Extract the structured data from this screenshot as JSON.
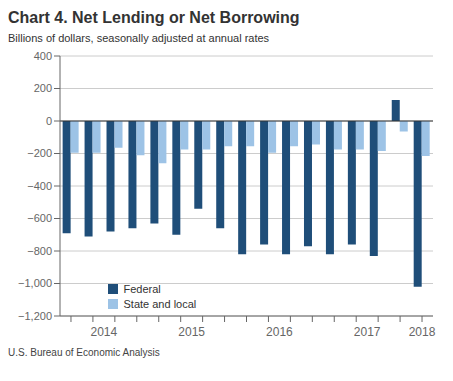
{
  "chart_data": {
    "type": "bar",
    "title": "Chart 4. Net Lending or Net Borrowing",
    "subtitle": "Billions of dollars, seasonally adjusted at annual rates",
    "annotations": [
      "U.S. Bureau of Economic Analysis"
    ],
    "categories": [
      "2014",
      null,
      null,
      null,
      "2015",
      null,
      null,
      null,
      "2016",
      null,
      null,
      null,
      "2017",
      null,
      null,
      null,
      "2018"
    ],
    "series": [
      {
        "name": "Federal",
        "color": "#1F4E79",
        "values": [
          -690,
          -710,
          -680,
          -660,
          -630,
          -700,
          -540,
          -660,
          -820,
          -760,
          -820,
          -770,
          -820,
          -760,
          -830,
          130,
          -1020
        ]
      },
      {
        "name": "State and local",
        "color": "#9DC3E6",
        "values": [
          -195,
          -195,
          -165,
          -210,
          -260,
          -175,
          -175,
          -155,
          -155,
          -195,
          -155,
          -145,
          -175,
          -175,
          -185,
          -65,
          -215
        ]
      }
    ],
    "ylim": [
      -1200,
      400
    ],
    "yticks": [
      400,
      200,
      0,
      {
        "value": -200,
        "label": "−200"
      },
      {
        "value": -400,
        "label": "−400"
      },
      {
        "value": -600,
        "label": "−600"
      },
      {
        "value": -800,
        "label": "−800"
      },
      {
        "value": -1000,
        "label": "−1,000"
      },
      {
        "value": -1200,
        "label": "−1,200"
      }
    ],
    "grid": true,
    "legend": "lower left"
  }
}
